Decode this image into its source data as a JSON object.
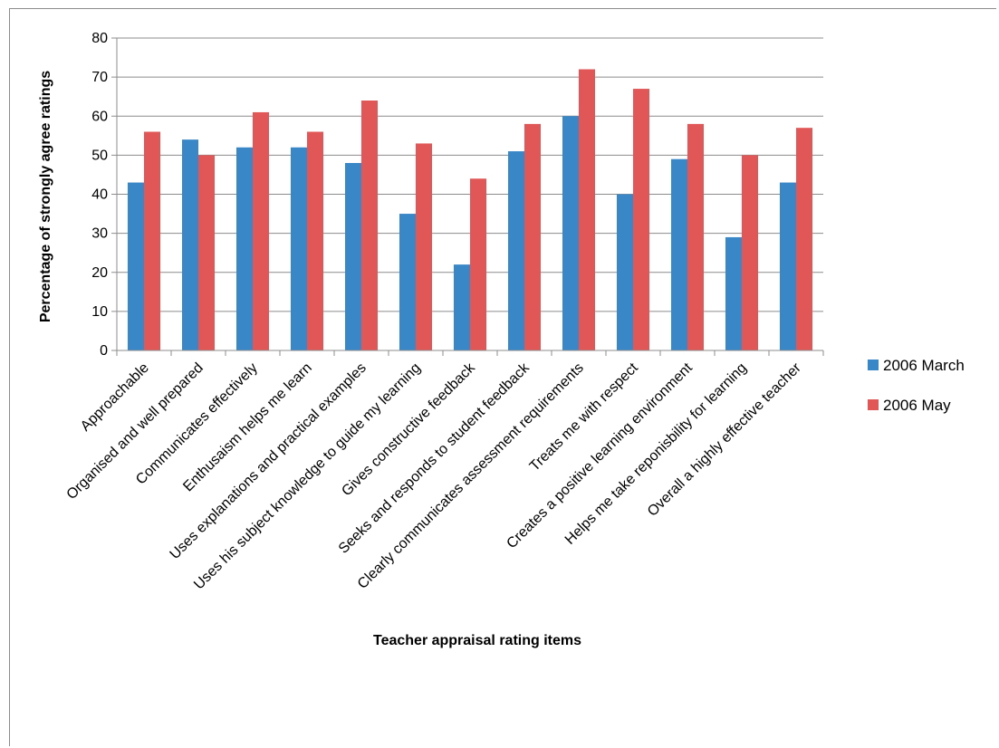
{
  "chart_data": {
    "type": "bar",
    "title": "",
    "xlabel": "Teacher appraisal rating items",
    "ylabel": "Percentage of strongly agree ratings",
    "ylim": [
      0,
      80
    ],
    "yticks": [
      0,
      10,
      20,
      30,
      40,
      50,
      60,
      70,
      80
    ],
    "grid": true,
    "legend_position": "right",
    "categories": [
      "Approachable",
      "Organised and well prepared",
      "Communicates effectively",
      "Enthusaism helps me learn",
      "Uses explanations and practical examples",
      "Uses his subject knowledge to guide my learning",
      "Gives constructive feedback",
      "Seeks and responds to student feedback",
      "Clearly communicates assessment requirements",
      "Treats me with respect",
      "Creates a positive learning environment",
      "Helps me take reponisbility for learning",
      "Overall a highly effective teacher"
    ],
    "series": [
      {
        "name": "2006 March",
        "color": "#3a87c8",
        "values": [
          43,
          54,
          52,
          52,
          48,
          35,
          22,
          51,
          60,
          40,
          49,
          29,
          43
        ]
      },
      {
        "name": "2006 May",
        "color": "#e15656",
        "values": [
          56,
          50,
          61,
          56,
          64,
          53,
          44,
          58,
          72,
          67,
          58,
          50,
          57
        ]
      }
    ]
  }
}
